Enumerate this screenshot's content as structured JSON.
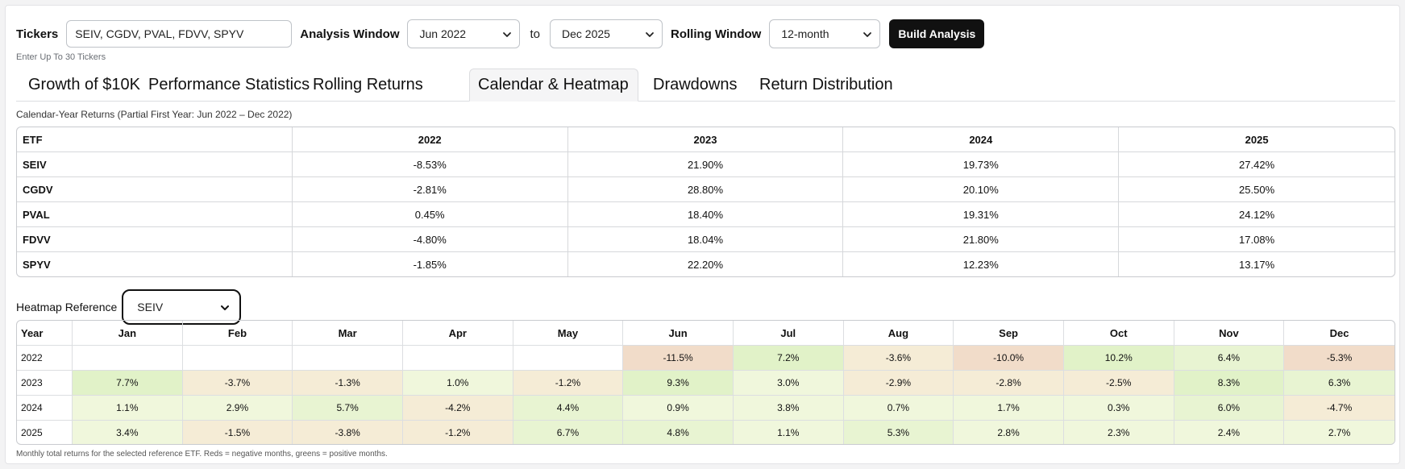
{
  "controls": {
    "tickers_label": "Tickers",
    "tickers_value": "SEIV, CGDV, PVAL, FDVV, SPYV",
    "analysis_window_label": "Analysis Window",
    "window_start": "Jun 2022",
    "to_label": "to",
    "window_end": "Dec 2025",
    "rolling_window_label": "Rolling Window",
    "rolling_window_value": "12-month",
    "build_button": "Build Analysis",
    "hint": "Enter Up To 30 Tickers"
  },
  "tabs": [
    {
      "label": "Growth of $10K"
    },
    {
      "label": "Performance Statistics"
    },
    {
      "label": "Rolling Returns"
    },
    {
      "label": "Calendar & Heatmap",
      "active": true
    },
    {
      "label": "Drawdowns"
    },
    {
      "label": "Return Distribution"
    }
  ],
  "calendar": {
    "caption": "Calendar-Year Returns (Partial First Year: Jun 2022 – Dec 2022)",
    "headers": [
      "ETF",
      "2022",
      "2023",
      "2024",
      "2025"
    ],
    "rows": [
      [
        "SEIV",
        "-8.53%",
        "21.90%",
        "19.73%",
        "27.42%"
      ],
      [
        "CGDV",
        "-2.81%",
        "28.80%",
        "20.10%",
        "25.50%"
      ],
      [
        "PVAL",
        "0.45%",
        "18.40%",
        "19.31%",
        "24.12%"
      ],
      [
        "FDVV",
        "-4.80%",
        "18.04%",
        "21.80%",
        "17.08%"
      ],
      [
        "SPYV",
        "-1.85%",
        "22.20%",
        "12.23%",
        "13.17%"
      ]
    ]
  },
  "heatmap": {
    "reference_label": "Heatmap Reference",
    "reference_value": "SEIV",
    "headers": [
      "Year",
      "Jan",
      "Feb",
      "Mar",
      "Apr",
      "May",
      "Jun",
      "Jul",
      "Aug",
      "Sep",
      "Oct",
      "Nov",
      "Dec"
    ],
    "rows": [
      [
        "2022",
        "",
        "",
        "",
        "",
        "",
        "-11.5%",
        "7.2%",
        "-3.6%",
        "-10.0%",
        "10.2%",
        "6.4%",
        "-5.3%"
      ],
      [
        "2023",
        "7.7%",
        "-3.7%",
        "-1.3%",
        "1.0%",
        "-1.2%",
        "9.3%",
        "3.0%",
        "-2.9%",
        "-2.8%",
        "-2.5%",
        "8.3%",
        "6.3%"
      ],
      [
        "2024",
        "1.1%",
        "2.9%",
        "5.7%",
        "-4.2%",
        "4.4%",
        "0.9%",
        "3.8%",
        "0.7%",
        "1.7%",
        "0.3%",
        "6.0%",
        "-4.7%"
      ],
      [
        "2025",
        "3.4%",
        "-1.5%",
        "-3.8%",
        "-1.2%",
        "6.7%",
        "4.8%",
        "1.1%",
        "5.3%",
        "2.8%",
        "2.3%",
        "2.4%",
        "2.7%"
      ]
    ],
    "colors": {
      "neg_strong": "#f1dcc9",
      "neg_light": "#f5ecd6",
      "pos_light": "#f0f7dc",
      "pos_mid": "#e8f4d2",
      "pos_strong": "#e1f2c8"
    },
    "footnote": "Monthly total returns for the selected reference ETF. Reds = negative months, greens = positive months."
  }
}
